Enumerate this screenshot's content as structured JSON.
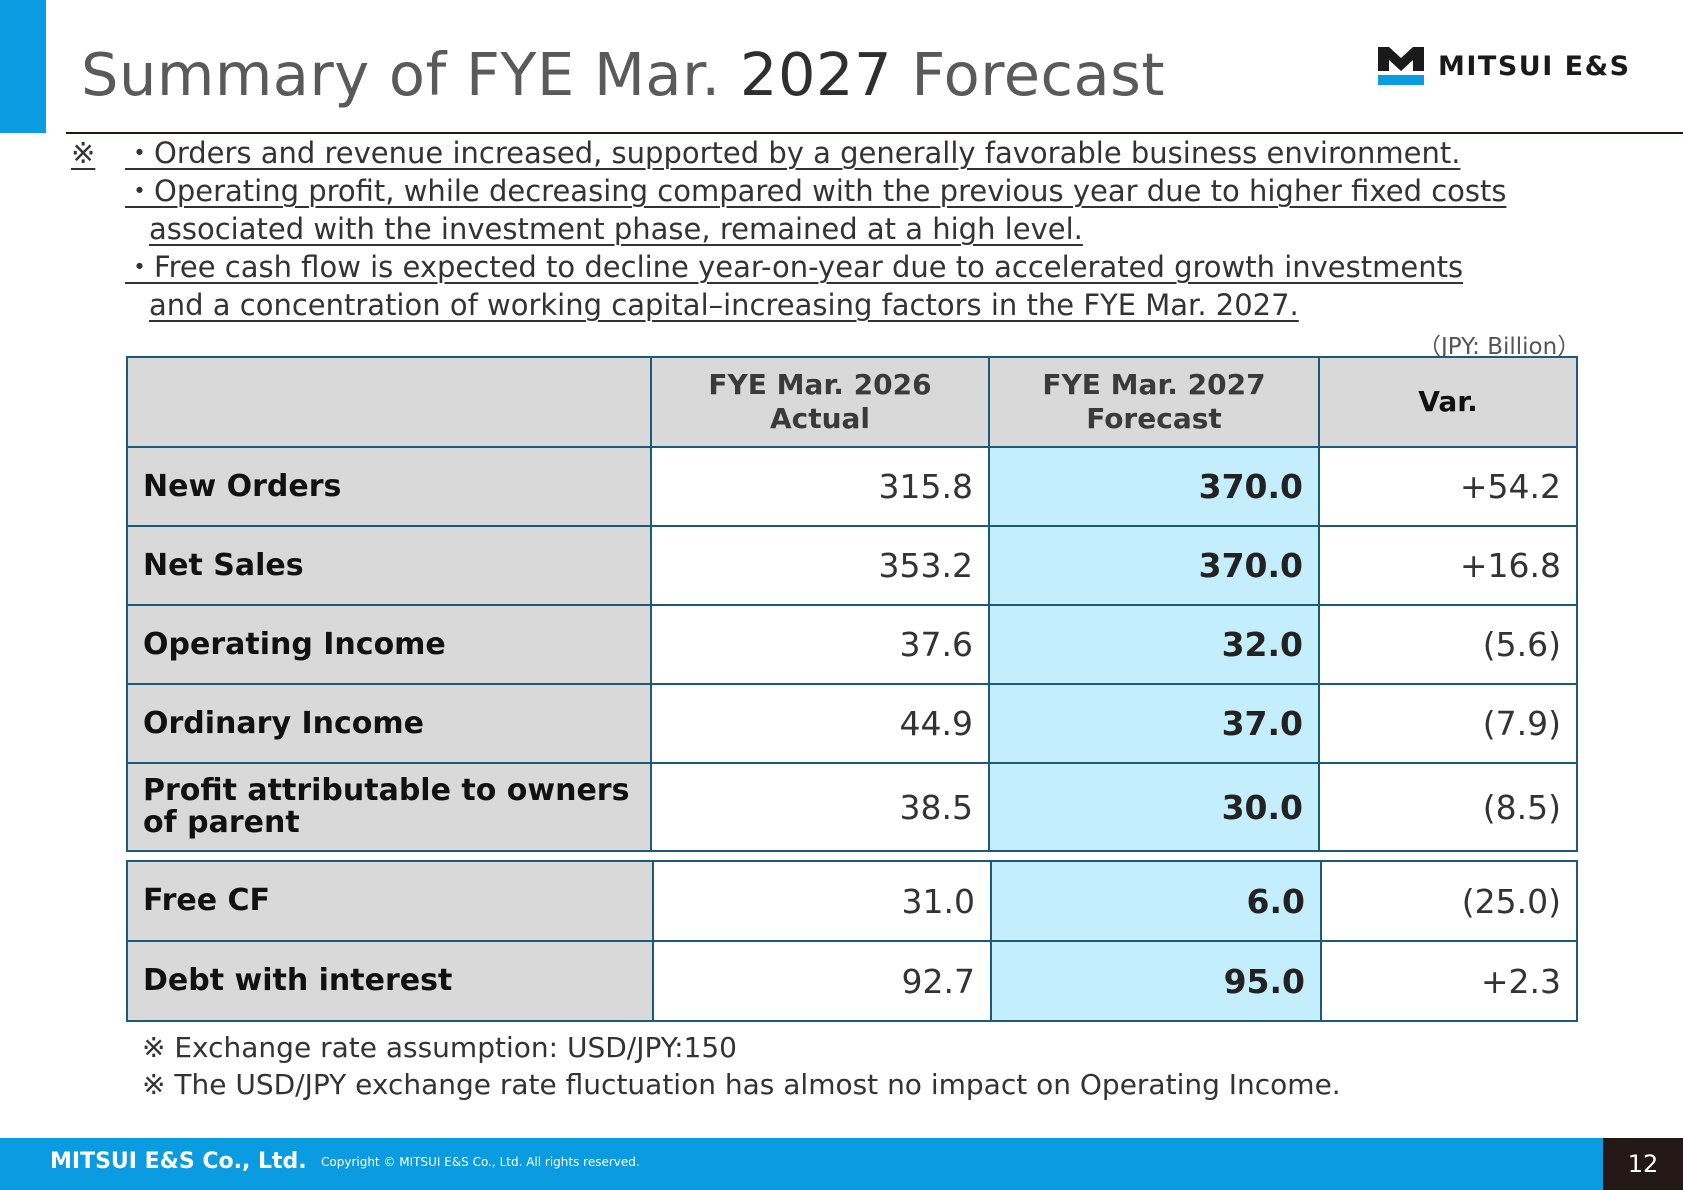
{
  "header": {
    "title_pre": "Summary of FYE Mar. ",
    "title_year": "2027",
    "title_post": " Forecast",
    "logo_text": "MITSUI E&S"
  },
  "bullets": {
    "mark": "※",
    "b1": "・Orders and revenue increased, supported by a generally favorable business environment.",
    "b2_l1": "・Operating profit, while decreasing compared with the previous year due to higher fixed costs",
    "b2_l2": "associated with the investment phase, remained at a high level.",
    "b3_l1": "・Free cash flow is expected to decline year-on-year due to accelerated growth investments",
    "b3_l2": "and a concentration of working capital–increasing factors in the FYE Mar. 2027."
  },
  "unit": "（JPY: Billion）",
  "table": {
    "col_actual_l1": "FYE Mar. 2026",
    "col_actual_l2": "Actual",
    "col_forecast_l1": "FYE Mar. 2027",
    "col_forecast_l2": "Forecast",
    "col_var": "Var.",
    "rows": [
      {
        "label": "New Orders",
        "actual": "315.8",
        "forecast": "370.0",
        "var": "+54.2"
      },
      {
        "label": "Net Sales",
        "actual": "353.2",
        "forecast": "370.0",
        "var": "+16.8"
      },
      {
        "label": "Operating Income",
        "actual": "37.6",
        "forecast": "32.0",
        "var": "(5.6)"
      },
      {
        "label": "Ordinary Income",
        "actual": "44.9",
        "forecast": "37.0",
        "var": "(7.9)"
      },
      {
        "label_l1": "Profit attributable to owners",
        "label_l2": "of parent",
        "actual": "38.5",
        "forecast": "30.0",
        "var": "(8.5)"
      }
    ],
    "rows2": [
      {
        "label": "Free CF",
        "actual": "31.0",
        "forecast": "6.0",
        "var": "(25.0)"
      },
      {
        "label": "Debt with interest",
        "actual": "92.7",
        "forecast": "95.0",
        "var": "+2.3"
      }
    ]
  },
  "footnotes": {
    "f1": "※ Exchange rate assumption: USD/JPY:150",
    "f2": "※ The USD/JPY exchange rate fluctuation has almost no impact on Operating Income."
  },
  "footer": {
    "company": "MITSUI E&S Co., Ltd.",
    "copyright": "Copyright © MITSUI E&S Co., Ltd. All rights reserved.",
    "page": "12"
  },
  "colors": {
    "accent": "#0b9be0",
    "header_cell": "#d9d9d9",
    "forecast_cell": "#c5eefc",
    "border": "#1c5a78"
  }
}
